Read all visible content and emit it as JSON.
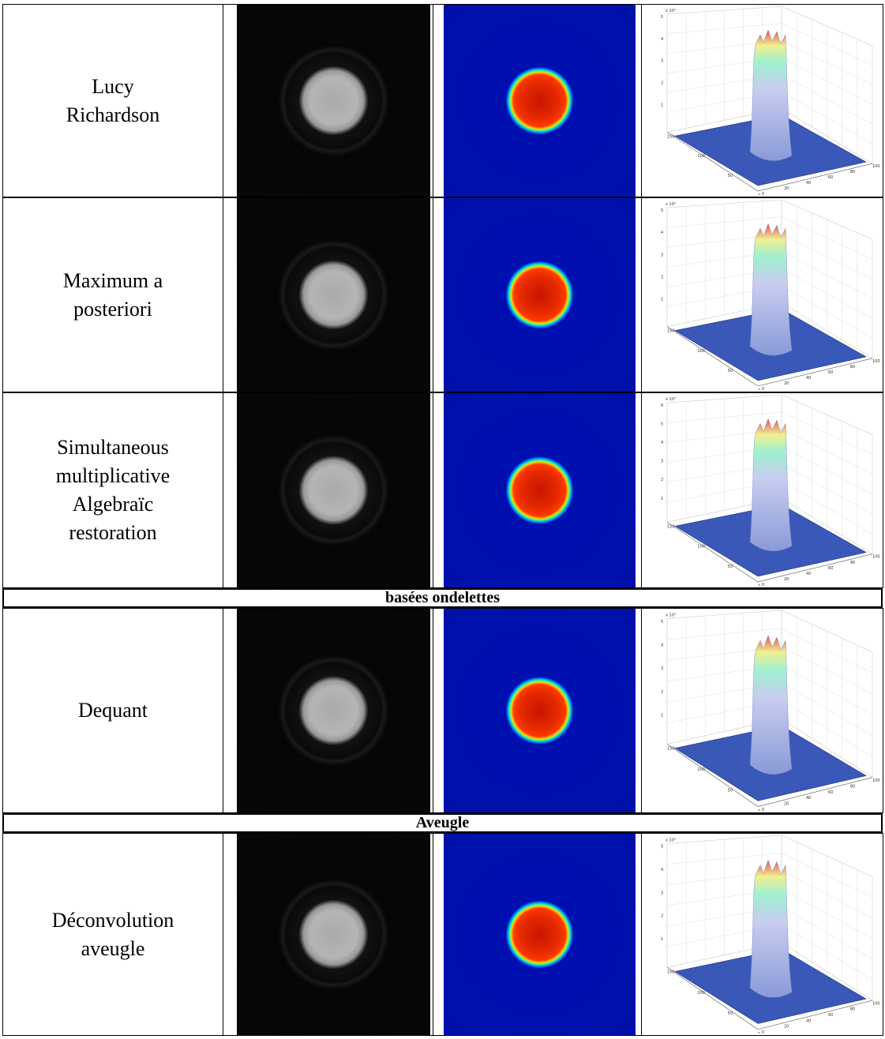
{
  "table": {
    "rows": [
      {
        "method": [
          "Lucy",
          "Richardson"
        ],
        "z_ticks": [
          "1",
          "2",
          "3",
          "4",
          "5"
        ]
      },
      {
        "method": [
          "Maximum a",
          "posteriori"
        ],
        "z_ticks": [
          "1",
          "2",
          "3",
          "4",
          "5"
        ]
      },
      {
        "method": [
          "Simultaneous",
          "multiplicative",
          "Algebraïc",
          "restoration"
        ],
        "z_ticks": [
          "1",
          "2",
          "3",
          "4",
          "5",
          "6"
        ]
      },
      {
        "section": "basées ondelettes"
      },
      {
        "method": [
          "Dequant"
        ],
        "z_ticks": [
          "1",
          "2",
          "3",
          "4",
          "5"
        ]
      },
      {
        "section": "Aveugle"
      },
      {
        "method": [
          "Déconvolution",
          "aveugle"
        ],
        "z_ticks": [
          "1",
          "2",
          "3",
          "4",
          "5"
        ]
      }
    ]
  },
  "plot_axis": {
    "scale": "x 10⁴",
    "y_ticks": [
      "0",
      "50",
      "100",
      "150"
    ],
    "x_ticks": [
      "0",
      "20",
      "40",
      "60",
      "80",
      "100"
    ]
  }
}
